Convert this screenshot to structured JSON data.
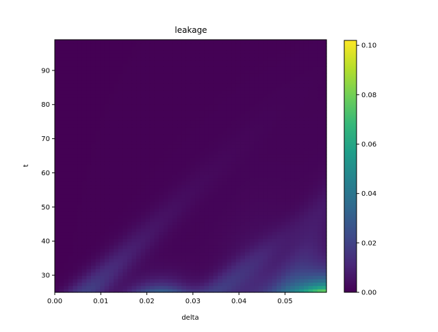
{
  "chart_data": {
    "type": "heatmap",
    "title": "leakage",
    "xlabel": "delta",
    "ylabel": "t",
    "colormap": "viridis",
    "xlim": [
      0.0,
      0.059
    ],
    "ylim": [
      25,
      99
    ],
    "x_ticks": [
      0.0,
      0.01,
      0.02,
      0.03,
      0.04,
      0.05
    ],
    "x_tick_labels": [
      "0.00",
      "0.01",
      "0.02",
      "0.03",
      "0.04",
      "0.05"
    ],
    "y_ticks": [
      30,
      40,
      50,
      60,
      70,
      80,
      90
    ],
    "y_tick_labels": [
      "30",
      "40",
      "50",
      "60",
      "70",
      "80",
      "90"
    ],
    "colorbar": {
      "range": [
        0.0,
        0.102
      ],
      "ticks": [
        0.0,
        0.02,
        0.04,
        0.06,
        0.08,
        0.1
      ],
      "tick_labels": [
        "0.00",
        "0.02",
        "0.04",
        "0.06",
        "0.08",
        "0.10"
      ]
    },
    "grid": false,
    "colors": {
      "viridis": [
        "#440154",
        "#482878",
        "#3e4a89",
        "#31688e",
        "#26828e",
        "#1f9e89",
        "#35b779",
        "#6ece58",
        "#b5de2b",
        "#fde725"
      ]
    }
  }
}
